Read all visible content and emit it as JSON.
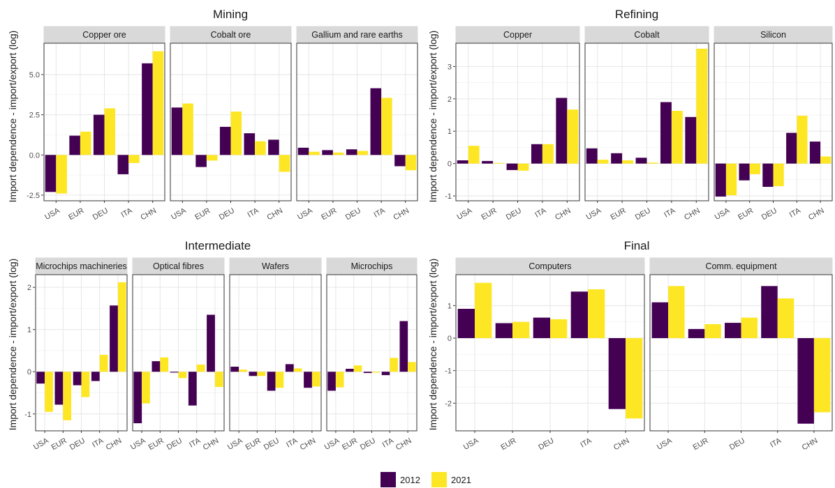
{
  "legend": {
    "items": [
      {
        "label": "2012",
        "color": "#440154"
      },
      {
        "label": "2021",
        "color": "#FDE725"
      }
    ]
  },
  "chart_data": [
    {
      "type": "bar",
      "title": "Mining",
      "ylabel": "Import dependence - import/export (log)",
      "categories": [
        "USA",
        "EUR",
        "DEU",
        "ITA",
        "CHN"
      ],
      "yticks": [
        -2.5,
        0.0,
        2.5,
        5.0
      ],
      "ytick_labels": [
        "-2.5",
        "0.0",
        "2.5",
        "5.0"
      ],
      "ylim": [
        -2.85,
        6.95
      ],
      "grid": true,
      "facets": [
        {
          "label": "Copper ore",
          "series": [
            {
              "name": "2012",
              "values": [
                -2.3,
                1.2,
                2.5,
                -1.2,
                5.7
              ]
            },
            {
              "name": "2021",
              "values": [
                -2.4,
                1.45,
                2.9,
                -0.5,
                6.45
              ]
            }
          ]
        },
        {
          "label": "Cobalt ore",
          "series": [
            {
              "name": "2012",
              "values": [
                2.95,
                -0.75,
                1.75,
                1.35,
                0.95
              ]
            },
            {
              "name": "2021",
              "values": [
                3.2,
                -0.35,
                2.7,
                0.85,
                -1.05
              ]
            }
          ]
        },
        {
          "label": "Gallium and rare earths",
          "series": [
            {
              "name": "2012",
              "values": [
                0.45,
                0.3,
                0.35,
                4.15,
                -0.7
              ]
            },
            {
              "name": "2021",
              "values": [
                0.2,
                0.15,
                0.25,
                3.55,
                -0.95
              ]
            }
          ]
        }
      ]
    },
    {
      "type": "bar",
      "title": "Refining",
      "ylabel": "Import dependence - import/export (log)",
      "categories": [
        "USA",
        "EUR",
        "DEU",
        "ITA",
        "CHN"
      ],
      "yticks": [
        -1,
        0,
        1,
        2,
        3
      ],
      "ytick_labels": [
        "-1",
        "0",
        "1",
        "2",
        "3"
      ],
      "ylim": [
        -1.15,
        3.72
      ],
      "grid": true,
      "facets": [
        {
          "label": "Copper",
          "series": [
            {
              "name": "2012",
              "values": [
                0.1,
                0.08,
                -0.2,
                0.6,
                2.03
              ]
            },
            {
              "name": "2021",
              "values": [
                0.55,
                0.02,
                -0.22,
                0.6,
                1.67
              ]
            }
          ]
        },
        {
          "label": "Cobalt",
          "series": [
            {
              "name": "2012",
              "values": [
                0.47,
                0.32,
                0.18,
                1.9,
                1.44
              ]
            },
            {
              "name": "2021",
              "values": [
                0.12,
                0.1,
                0.03,
                1.63,
                3.55
              ]
            }
          ]
        },
        {
          "label": "Silicon",
          "series": [
            {
              "name": "2012",
              "values": [
                -1.02,
                -0.52,
                -0.72,
                0.95,
                0.68
              ]
            },
            {
              "name": "2021",
              "values": [
                -0.98,
                -0.33,
                -0.7,
                1.48,
                0.22
              ]
            }
          ]
        }
      ]
    },
    {
      "type": "bar",
      "title": "Intermediate",
      "ylabel": "Import dependence - import/export (log)",
      "categories": [
        "USA",
        "EUR",
        "DEU",
        "ITA",
        "CHN"
      ],
      "yticks": [
        -1,
        0,
        1,
        2
      ],
      "ytick_labels": [
        "-1",
        "0",
        "1",
        "2"
      ],
      "ylim": [
        -1.4,
        2.3
      ],
      "grid": true,
      "facets": [
        {
          "label": "Microchips machineries",
          "series": [
            {
              "name": "2012",
              "values": [
                -0.28,
                -0.78,
                -0.32,
                -0.22,
                1.57
              ]
            },
            {
              "name": "2021",
              "values": [
                -0.95,
                -1.15,
                -0.6,
                0.4,
                2.12
              ]
            }
          ]
        },
        {
          "label": "Optical fibres",
          "series": [
            {
              "name": "2012",
              "values": [
                -1.22,
                0.25,
                -0.02,
                -0.8,
                1.35
              ]
            },
            {
              "name": "2021",
              "values": [
                -0.75,
                0.34,
                -0.15,
                0.17,
                -0.36
              ]
            }
          ]
        },
        {
          "label": "Wafers",
          "series": [
            {
              "name": "2012",
              "values": [
                0.12,
                -0.1,
                -0.45,
                0.18,
                -0.38
              ]
            },
            {
              "name": "2021",
              "values": [
                0.05,
                -0.1,
                -0.38,
                0.08,
                -0.35
              ]
            }
          ]
        },
        {
          "label": "Microchips",
          "series": [
            {
              "name": "2012",
              "values": [
                -0.45,
                0.07,
                -0.03,
                -0.08,
                1.2
              ]
            },
            {
              "name": "2021",
              "values": [
                -0.37,
                0.15,
                -0.02,
                0.33,
                0.23
              ]
            }
          ]
        }
      ]
    },
    {
      "type": "bar",
      "title": "Final",
      "ylabel": "Import dependence - import/export (log)",
      "categories": [
        "USA",
        "EUR",
        "DEU",
        "ITA",
        "CHN"
      ],
      "yticks": [
        -2,
        -1,
        0,
        1
      ],
      "ytick_labels": [
        "-2",
        "-1",
        "0",
        "1"
      ],
      "ylim": [
        -2.85,
        1.95
      ],
      "grid": true,
      "facets": [
        {
          "label": "Computers",
          "series": [
            {
              "name": "2012",
              "values": [
                0.9,
                0.46,
                0.63,
                1.43,
                -2.18
              ]
            },
            {
              "name": "2021",
              "values": [
                1.7,
                0.5,
                0.58,
                1.5,
                -2.47
              ]
            }
          ]
        },
        {
          "label": "Comm. equipment",
          "series": [
            {
              "name": "2012",
              "values": [
                1.1,
                0.28,
                0.47,
                1.6,
                -2.63
              ]
            },
            {
              "name": "2021",
              "values": [
                1.6,
                0.43,
                0.63,
                1.22,
                -2.28
              ]
            }
          ]
        }
      ]
    }
  ]
}
